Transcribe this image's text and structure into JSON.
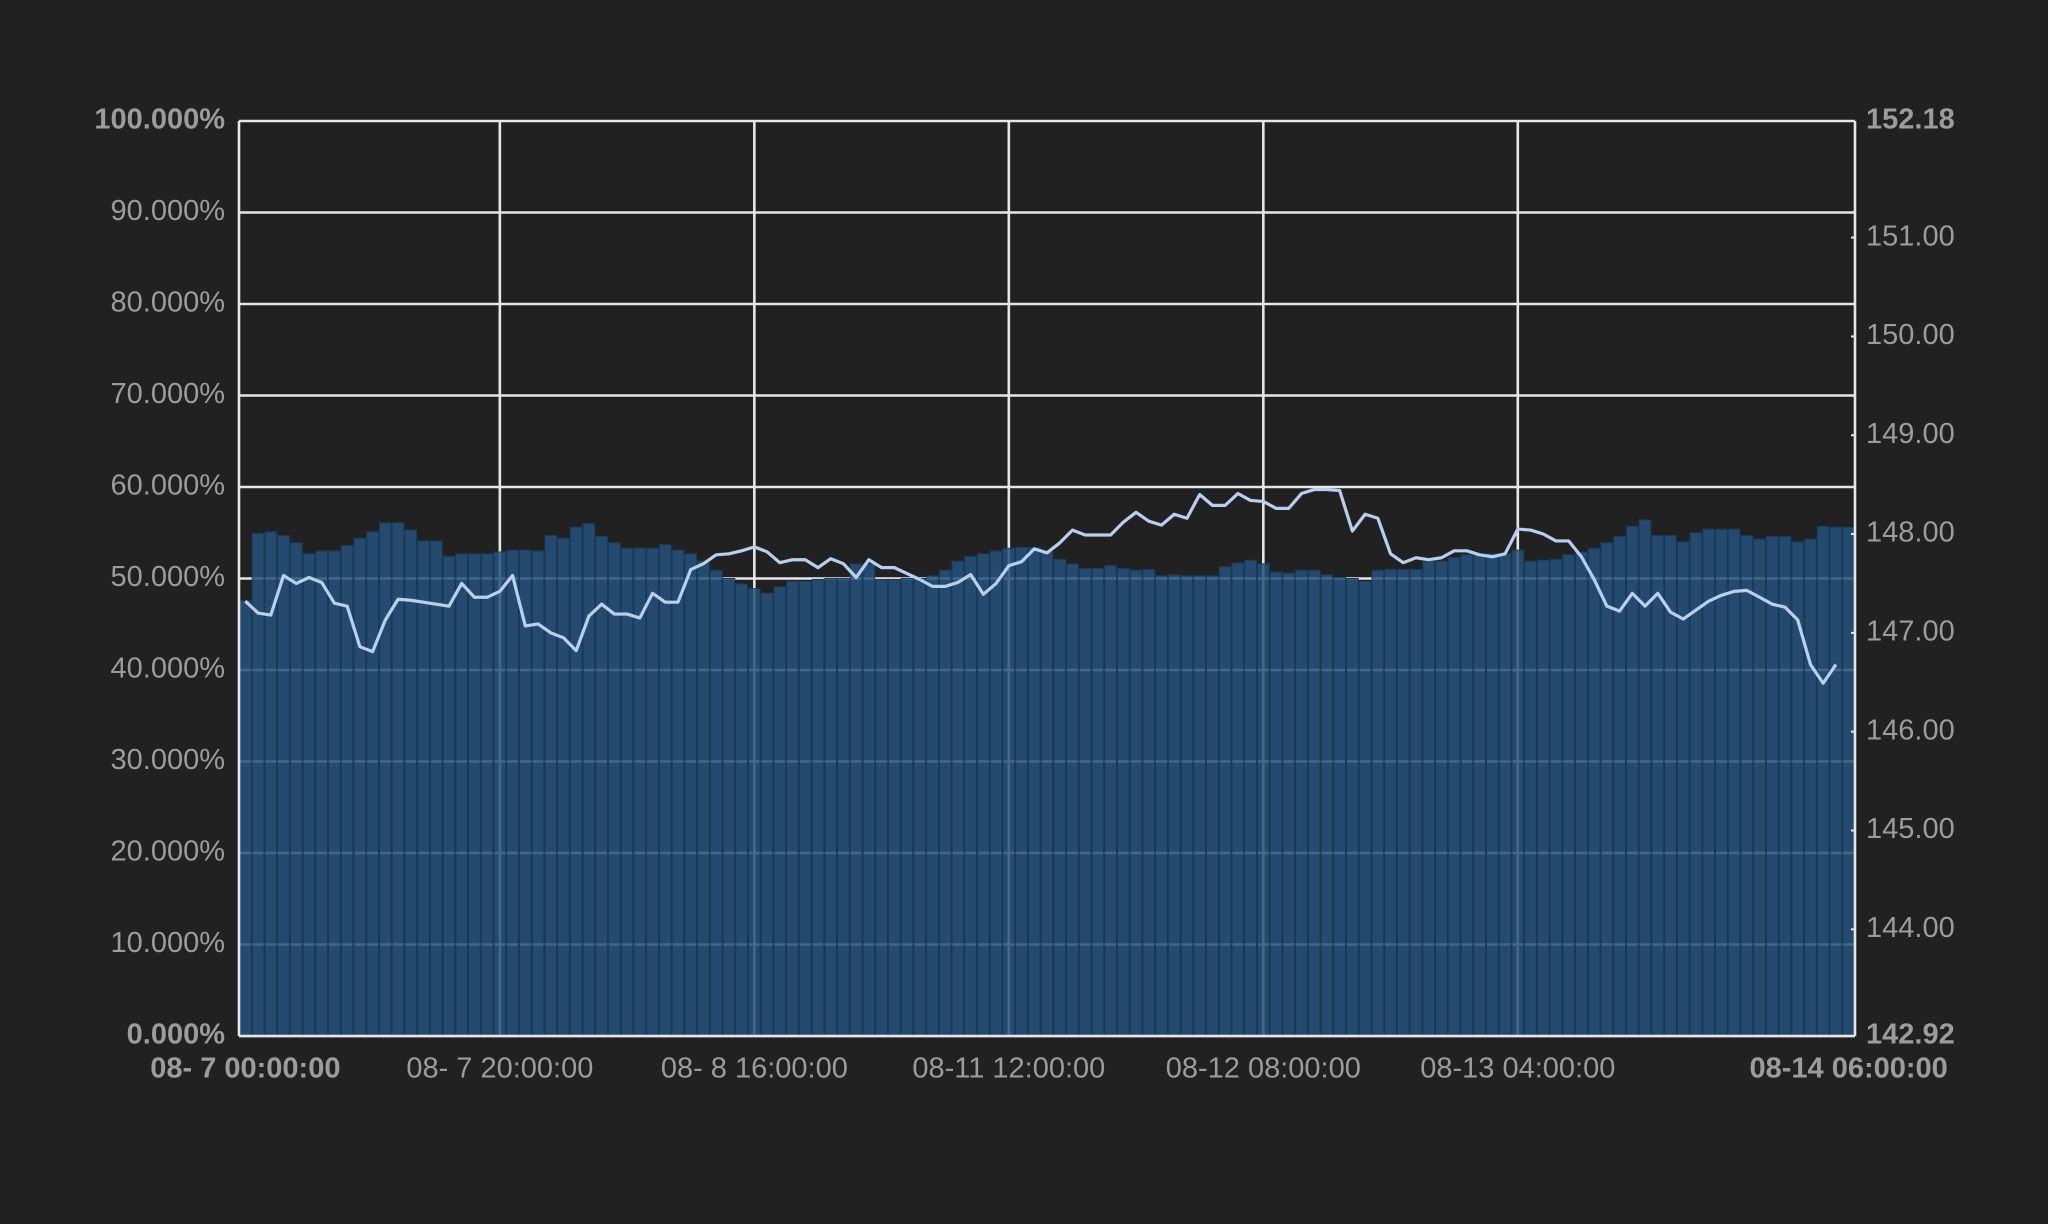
{
  "chart_data": {
    "type": "combo",
    "categories": [
      "08- 7 00:00:00",
      null,
      null,
      null,
      null,
      null,
      null,
      null,
      null,
      null,
      null,
      null,
      null,
      null,
      null,
      null,
      null,
      null,
      null,
      null,
      "08- 7 20:00:00",
      null,
      null,
      null,
      null,
      null,
      null,
      null,
      null,
      null,
      null,
      null,
      null,
      null,
      null,
      null,
      null,
      null,
      null,
      null,
      "08- 8 16:00:00",
      null,
      null,
      null,
      null,
      null,
      null,
      null,
      null,
      null,
      null,
      null,
      null,
      null,
      null,
      null,
      null,
      null,
      null,
      null,
      "08-11 12:00:00",
      null,
      null,
      null,
      null,
      null,
      null,
      null,
      null,
      null,
      null,
      null,
      null,
      null,
      null,
      null,
      null,
      null,
      null,
      null,
      "08-12 08:00:00",
      null,
      null,
      null,
      null,
      null,
      null,
      null,
      null,
      null,
      null,
      null,
      null,
      null,
      null,
      null,
      null,
      null,
      null,
      null,
      "08-13 04:00:00",
      null,
      null,
      null,
      null,
      null,
      null,
      null,
      null,
      null,
      null,
      null,
      null,
      null,
      null,
      null,
      null,
      null,
      null,
      null,
      null,
      null,
      null,
      null,
      null,
      null,
      "08-14 06:00:00"
    ],
    "series": [
      {
        "type": "bar",
        "color": "#24527c",
        "values": [
          47.6,
          54.9,
          55.1,
          54.7,
          53.9,
          52.7,
          53,
          53,
          53.6,
          54.4,
          55.1,
          56.1,
          56.1,
          55.3,
          54.1,
          54.1,
          52.4,
          52.7,
          52.7,
          52.7,
          52.9,
          53.1,
          53.1,
          53,
          54.7,
          54.4,
          55.6,
          56,
          54.6,
          53.9,
          53.3,
          53.3,
          53.3,
          53.7,
          53.1,
          52.7,
          51.9,
          50.9,
          50,
          49.4,
          48.9,
          48.4,
          49.1,
          49.7,
          49.7,
          49.9,
          50,
          50,
          51.6,
          51.6,
          49.9,
          49.9,
          50,
          50,
          50.3,
          50.9,
          51.9,
          52.4,
          52.7,
          53,
          53.3,
          53.4,
          53.4,
          52.9,
          52.1,
          51.6,
          51.1,
          51.1,
          51.4,
          51.1,
          50.9,
          51,
          50.3,
          50.4,
          50.3,
          50.3,
          50.3,
          51.3,
          51.7,
          52,
          51.6,
          50.7,
          50.6,
          50.9,
          50.9,
          50.4,
          50.1,
          50,
          49.7,
          50.9,
          51,
          51,
          51,
          51.9,
          51.9,
          52.3,
          52.6,
          52.7,
          52.7,
          52.7,
          53.1,
          51.9,
          52,
          52.1,
          52.6,
          52.9,
          53.3,
          53.9,
          54.6,
          55.7,
          56.4,
          54.7,
          54.7,
          54,
          55,
          55.4,
          55.4,
          55.4,
          54.7,
          54.3,
          54.6,
          54.6,
          54,
          54.3,
          55.7,
          55.6,
          55.6
        ]
      },
      {
        "type": "line",
        "axis": "y2",
        "color": "#b8d0ef",
        "values": [
          147.32,
          147.2,
          147.18,
          147.58,
          147.5,
          147.56,
          147.51,
          147.3,
          147.27,
          146.86,
          146.81,
          147.13,
          147.34,
          147.33,
          147.31,
          147.29,
          147.27,
          147.5,
          147.36,
          147.36,
          147.42,
          147.58,
          147.07,
          147.09,
          147,
          146.95,
          146.82,
          147.17,
          147.29,
          147.19,
          147.19,
          147.15,
          147.4,
          147.31,
          147.31,
          147.64,
          147.7,
          147.79,
          147.8,
          147.83,
          147.87,
          147.82,
          147.71,
          147.74,
          147.74,
          147.66,
          147.75,
          147.7,
          147.56,
          147.74,
          147.66,
          147.66,
          147.6,
          147.54,
          147.47,
          147.47,
          147.51,
          147.59,
          147.39,
          147.5,
          147.68,
          147.72,
          147.85,
          147.81,
          147.91,
          148.04,
          147.99,
          147.99,
          147.99,
          148.12,
          148.22,
          148.13,
          148.09,
          148.2,
          148.16,
          148.4,
          148.29,
          148.29,
          148.41,
          148.34,
          148.33,
          148.26,
          148.26,
          148.41,
          148.45,
          148.45,
          148.44,
          148.03,
          148.2,
          148.16,
          147.8,
          147.71,
          147.76,
          147.74,
          147.76,
          147.83,
          147.83,
          147.79,
          147.77,
          147.8,
          148.05,
          148.04,
          148,
          147.93,
          147.93,
          147.77,
          147.54,
          147.27,
          147.22,
          147.4,
          147.27,
          147.4,
          147.21,
          147.14,
          147.23,
          147.32,
          147.38,
          147.42,
          147.43,
          147.36,
          147.29,
          147.26,
          147.13,
          146.68,
          146.49,
          146.68,
          null
        ]
      }
    ],
    "ylim": [
      0,
      100
    ],
    "yticks": [
      {
        "value": 0,
        "label": "0.000%"
      },
      {
        "value": 10,
        "label": "10.000%"
      },
      {
        "value": 20,
        "label": "20.000%"
      },
      {
        "value": 30,
        "label": "30.000%"
      },
      {
        "value": 40,
        "label": "40.000%"
      },
      {
        "value": 50,
        "label": "50.000%"
      },
      {
        "value": 60,
        "label": "60.000%"
      },
      {
        "value": 70,
        "label": "70.000%"
      },
      {
        "value": 80,
        "label": "80.000%"
      },
      {
        "value": 90,
        "label": "90.000%"
      },
      {
        "value": 100,
        "label": "100.000%"
      }
    ],
    "y2lim": [
      142.92,
      152.18
    ],
    "y2ticks": [
      142.92,
      {
        "value": 144,
        "label": "144.00"
      },
      {
        "value": 145,
        "label": "145.00"
      },
      {
        "value": 146,
        "label": "146.00"
      },
      {
        "value": 147,
        "label": "147.00"
      },
      {
        "value": 148,
        "label": "148.00"
      },
      {
        "value": 149,
        "label": "149.00"
      },
      {
        "value": 150,
        "label": "150.00"
      },
      {
        "value": 151,
        "label": "151.00"
      },
      152.18
    ],
    "grid": true
  }
}
